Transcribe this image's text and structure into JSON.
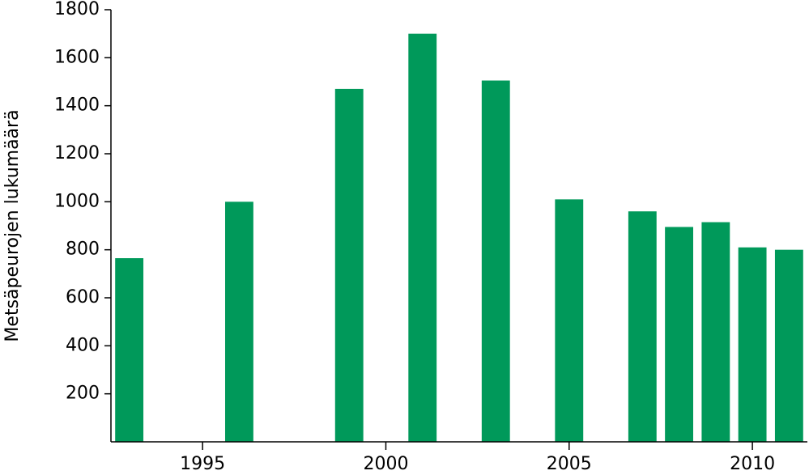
{
  "chart_data": {
    "type": "bar",
    "y_label": "Metsäpeurojen lukumäärä",
    "x": [
      1993,
      1996,
      1999,
      2001,
      2003,
      2005,
      2007,
      2008,
      2009,
      2010,
      2011
    ],
    "values": [
      765,
      1000,
      1470,
      1700,
      1505,
      1010,
      960,
      895,
      915,
      810,
      800
    ],
    "color": "#00995a",
    "xlim": [
      1992.5,
      2011.5
    ],
    "xticks": [
      1995,
      2000,
      2005,
      2010
    ],
    "ylim": [
      0,
      1800
    ],
    "yticks": [
      200,
      400,
      600,
      800,
      1000,
      1200,
      1400,
      1600,
      1800
    ]
  }
}
